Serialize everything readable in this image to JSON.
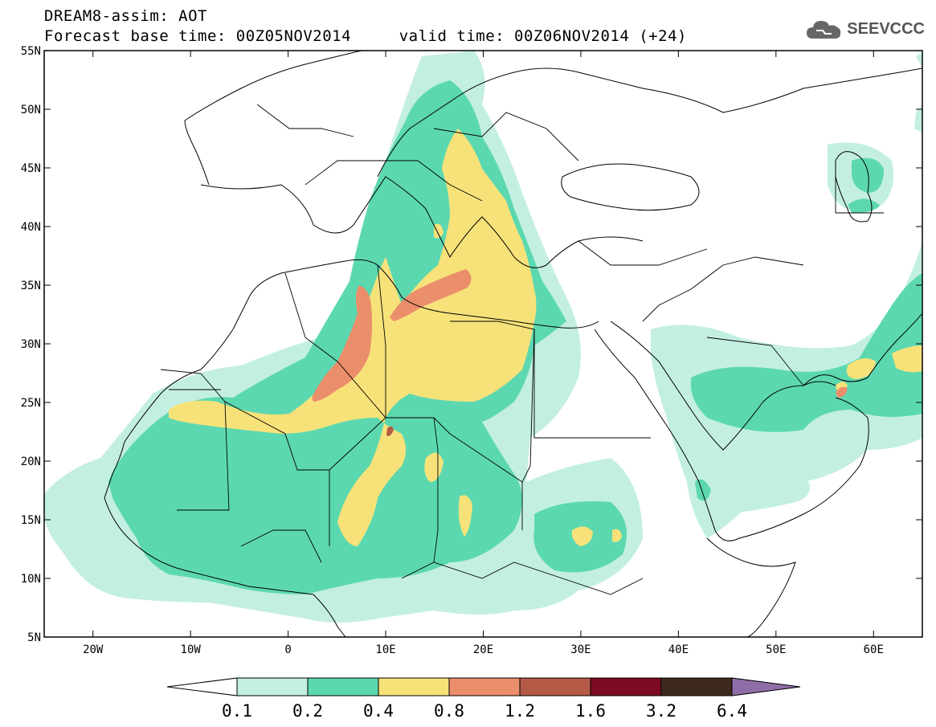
{
  "header": {
    "title_line1": "DREAM8-assim: AOT",
    "title_line2": "Forecast base time: 00Z05NOV2014     valid time: 00Z06NOV2014 (+24)"
  },
  "logo": {
    "text": "SEEVCCC",
    "icon": "cloud-icon"
  },
  "map": {
    "lat_labels": [
      "55N",
      "50N",
      "45N",
      "40N",
      "35N",
      "30N",
      "25N",
      "20N",
      "15N",
      "10N",
      "5N"
    ],
    "lon_labels": [
      "20W",
      "10W",
      "0",
      "10E",
      "20E",
      "30E",
      "40E",
      "50E",
      "60E"
    ],
    "lat_values": [
      55,
      50,
      45,
      40,
      35,
      30,
      25,
      20,
      15,
      10,
      5
    ],
    "lon_values": [
      -20,
      -10,
      0,
      10,
      20,
      30,
      40,
      50,
      60
    ],
    "lon_range": [
      -25,
      65
    ],
    "lat_range": [
      5,
      55
    ]
  },
  "colorbar": {
    "levels": [
      "0.1",
      "0.2",
      "0.4",
      "0.8",
      "1.2",
      "1.6",
      "3.2",
      "6.4"
    ],
    "colors": [
      "#c3efe3",
      "#5cd8b0",
      "#f7e27a",
      "#eb8e6b",
      "#b55a47",
      "#7c0a22",
      "#3e2a1c",
      "#8f6ea8"
    ],
    "under_color": "#ffffff"
  }
}
